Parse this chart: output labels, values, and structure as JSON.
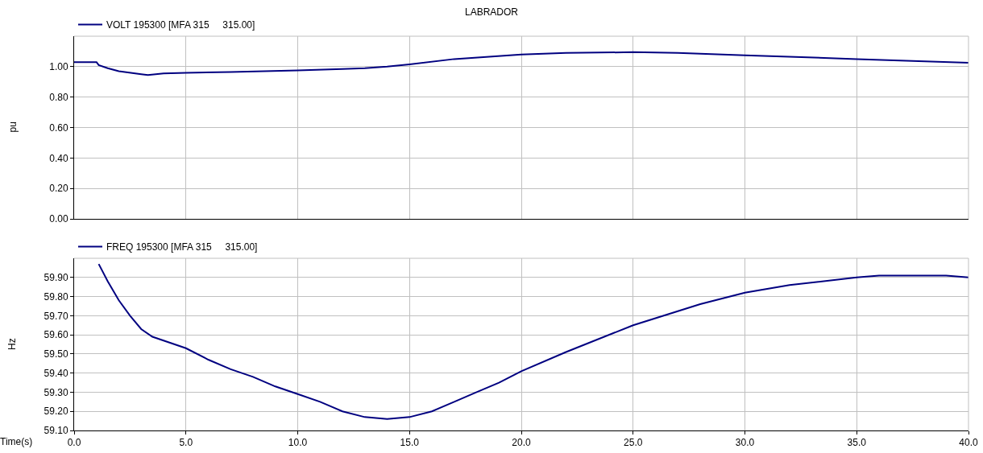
{
  "chart_data": [
    {
      "type": "line",
      "title": "LABRADOR",
      "ylabel": "pu",
      "legend": "top left",
      "grid": true,
      "tick_labels": "y",
      "line_style": "solid",
      "xlim": [
        0,
        40
      ],
      "xticks": [
        0,
        5,
        10,
        15,
        20,
        25,
        30,
        35,
        40
      ],
      "ylim": [
        0,
        1.2
      ],
      "yticks": [
        {
          "value": 0,
          "label": "0.00"
        },
        {
          "value": 0.2,
          "label": "0.20"
        },
        {
          "value": 0.4,
          "label": "0.40"
        },
        {
          "value": 0.6,
          "label": "0.60"
        },
        {
          "value": 0.8,
          "label": "0.80"
        },
        {
          "value": 1,
          "label": "1.00"
        }
      ],
      "series": [
        {
          "name": "VOLT 195300 [MFA 315     315.00]",
          "color": "#000080",
          "x": [
            0,
            1.0,
            1.1,
            1.5,
            2,
            3,
            3.3,
            4,
            5,
            7,
            10,
            12,
            13,
            14,
            15,
            17,
            20,
            22,
            25,
            27,
            30,
            35,
            40
          ],
          "values": [
            1.03,
            1.03,
            1.01,
            0.99,
            0.97,
            0.95,
            0.945,
            0.955,
            0.96,
            0.965,
            0.975,
            0.985,
            0.99,
            1.0,
            1.015,
            1.05,
            1.08,
            1.09,
            1.095,
            1.09,
            1.075,
            1.05,
            1.025
          ]
        }
      ]
    },
    {
      "type": "line",
      "xlabel": "Time(s)",
      "ylabel": "Hz",
      "legend": "top left",
      "grid": true,
      "line_style": "solid",
      "xlim": [
        0,
        40
      ],
      "xticks": [
        {
          "value": 0,
          "label": "0.0"
        },
        {
          "value": 5,
          "label": "5.0"
        },
        {
          "value": 10,
          "label": "10.0"
        },
        {
          "value": 15,
          "label": "15.0"
        },
        {
          "value": 20,
          "label": "20.0"
        },
        {
          "value": 25,
          "label": "25.0"
        },
        {
          "value": 30,
          "label": "30.0"
        },
        {
          "value": 35,
          "label": "35.0"
        },
        {
          "value": 40,
          "label": "40.0"
        }
      ],
      "ylim": [
        59.1,
        60.0
      ],
      "yticks": [
        {
          "value": 59.1,
          "label": "59.10"
        },
        {
          "value": 59.2,
          "label": "59.20"
        },
        {
          "value": 59.3,
          "label": "59.30"
        },
        {
          "value": 59.4,
          "label": "59.40"
        },
        {
          "value": 59.5,
          "label": "59.50"
        },
        {
          "value": 59.6,
          "label": "59.60"
        },
        {
          "value": 59.7,
          "label": "59.70"
        },
        {
          "value": 59.8,
          "label": "59.80"
        },
        {
          "value": 59.9,
          "label": "59.90"
        }
      ],
      "series": [
        {
          "name": "FREQ 195300 [MFA 315     315.00]",
          "color": "#000080",
          "x": [
            1.1,
            1.5,
            2,
            2.5,
            3,
            3.5,
            4,
            5,
            6,
            7,
            8,
            9,
            10,
            11,
            12,
            13,
            14,
            15,
            16,
            17,
            18,
            19,
            20,
            22,
            25,
            28,
            30,
            32,
            35,
            36,
            39,
            40
          ],
          "values": [
            59.97,
            59.88,
            59.78,
            59.7,
            59.63,
            59.59,
            59.57,
            59.53,
            59.47,
            59.42,
            59.38,
            59.33,
            59.29,
            59.25,
            59.2,
            59.17,
            59.16,
            59.17,
            59.2,
            59.25,
            59.3,
            59.35,
            59.41,
            59.51,
            59.65,
            59.76,
            59.82,
            59.86,
            59.9,
            59.91,
            59.91,
            59.9
          ]
        }
      ]
    }
  ]
}
